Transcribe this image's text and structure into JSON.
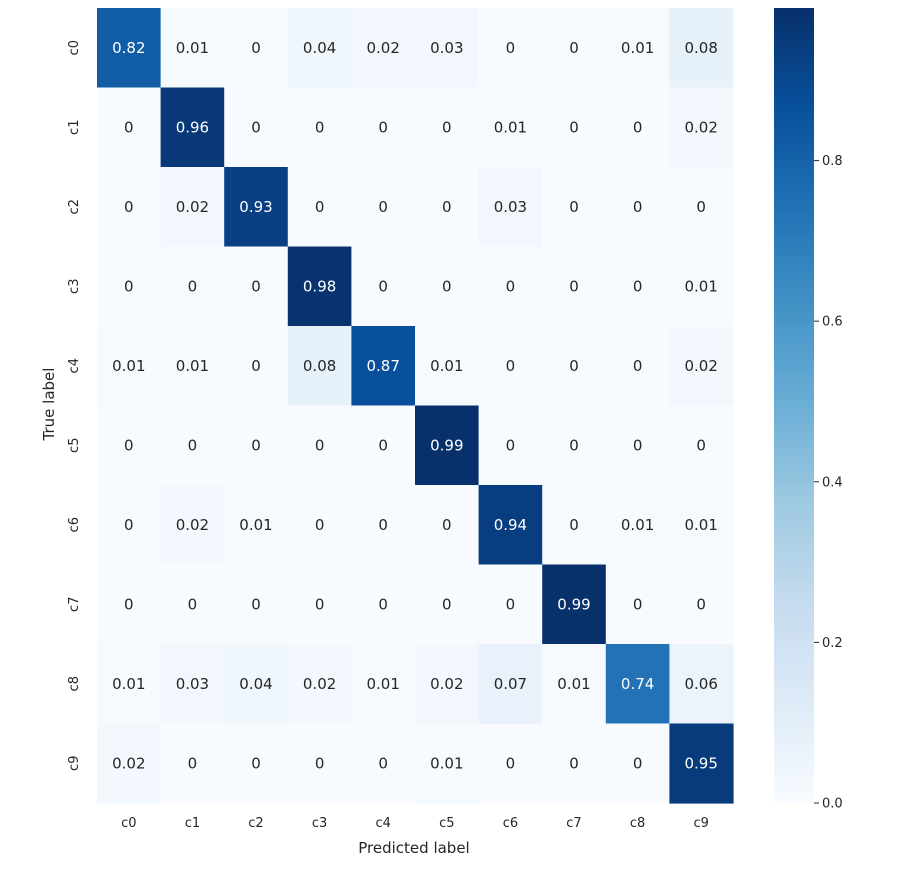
{
  "chart_data": {
    "type": "heatmap",
    "title": "",
    "xlabel": "Predicted label",
    "ylabel": "True label",
    "x_categories": [
      "c0",
      "c1",
      "c2",
      "c3",
      "c4",
      "c5",
      "c6",
      "c7",
      "c8",
      "c9"
    ],
    "y_categories": [
      "c0",
      "c1",
      "c2",
      "c3",
      "c4",
      "c5",
      "c6",
      "c7",
      "c8",
      "c9"
    ],
    "values": [
      [
        0.82,
        0.01,
        0,
        0.04,
        0.02,
        0.03,
        0,
        0,
        0.01,
        0.08
      ],
      [
        0,
        0.96,
        0,
        0,
        0,
        0,
        0.01,
        0,
        0,
        0.02
      ],
      [
        0,
        0.02,
        0.93,
        0,
        0,
        0,
        0.03,
        0,
        0,
        0
      ],
      [
        0,
        0,
        0,
        0.98,
        0,
        0,
        0,
        0,
        0,
        0.01
      ],
      [
        0.01,
        0.01,
        0,
        0.08,
        0.87,
        0.01,
        0,
        0,
        0,
        0.02
      ],
      [
        0,
        0,
        0,
        0,
        0,
        0.99,
        0,
        0,
        0,
        0
      ],
      [
        0,
        0.02,
        0.01,
        0,
        0,
        0,
        0.94,
        0,
        0.01,
        0.01
      ],
      [
        0,
        0,
        0,
        0,
        0,
        0,
        0,
        0.99,
        0,
        0
      ],
      [
        0.01,
        0.03,
        0.04,
        0.02,
        0.01,
        0.02,
        0.07,
        0.01,
        0.74,
        0.06
      ],
      [
        0.02,
        0,
        0,
        0,
        0,
        0.01,
        0,
        0,
        0,
        0.95
      ]
    ],
    "colormap": "Blues",
    "colormap_stops": [
      "#f7fbff",
      "#deebf7",
      "#c6dbef",
      "#9ecae1",
      "#6baed6",
      "#4292c6",
      "#2171b5",
      "#08519c",
      "#08306b"
    ],
    "colorbar": {
      "range": [
        0,
        0.99
      ],
      "ticks": [
        0.0,
        0.2,
        0.4,
        0.6,
        0.8
      ],
      "tick_labels": [
        "0.0",
        "0.2",
        "0.4",
        "0.6",
        "0.8"
      ]
    },
    "legend": "colorbar-right",
    "grid": false
  }
}
